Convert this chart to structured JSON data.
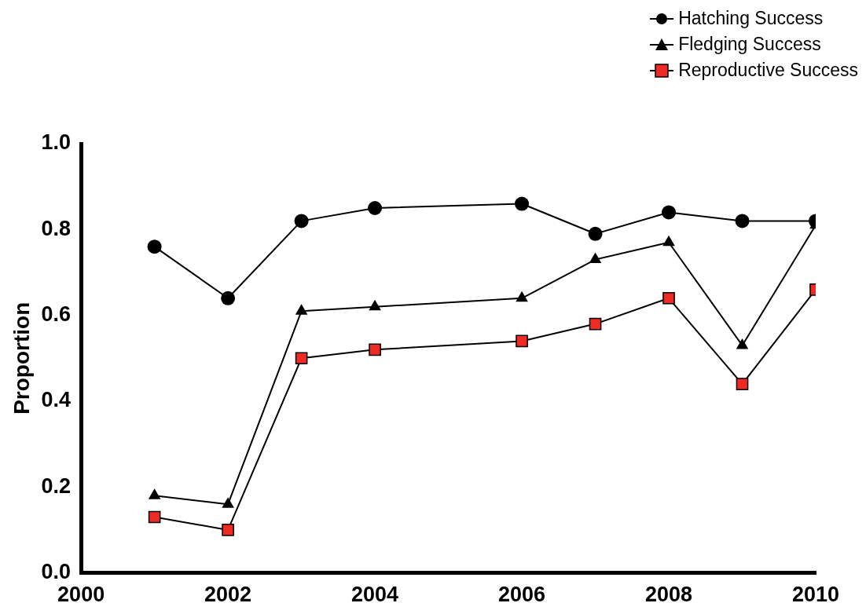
{
  "chart_data": {
    "type": "line",
    "xlabel": null,
    "ylabel": "Proportion",
    "x": [
      2001,
      2002,
      2003,
      2004,
      2006,
      2007,
      2008,
      2009,
      2010
    ],
    "series": [
      {
        "name": "Hatching Success",
        "color": "#000000",
        "marker": "circle",
        "values": [
          0.76,
          0.64,
          0.82,
          0.85,
          0.86,
          0.79,
          0.84,
          0.82,
          0.82
        ]
      },
      {
        "name": "Fledging Success",
        "color": "#000000",
        "marker": "triangle",
        "values": [
          0.18,
          0.16,
          0.61,
          0.62,
          0.64,
          0.73,
          0.77,
          0.53,
          0.81
        ]
      },
      {
        "name": "Reproductive Success",
        "color": "#ee2a24",
        "marker": "square",
        "values": [
          0.13,
          0.1,
          0.5,
          0.52,
          0.54,
          0.58,
          0.64,
          0.44,
          0.66
        ]
      }
    ],
    "xlim": [
      2000,
      2010
    ],
    "xticks": [
      2000,
      2002,
      2004,
      2006,
      2008,
      2010
    ],
    "ylim": [
      0,
      1
    ],
    "yticks": [
      {
        "value": 0,
        "label": "0.0"
      },
      0.2,
      0.4,
      0.6,
      0.8,
      {
        "value": 1,
        "label": "1.0"
      }
    ],
    "grid": false,
    "legend": "top right",
    "line_style": "solid"
  }
}
